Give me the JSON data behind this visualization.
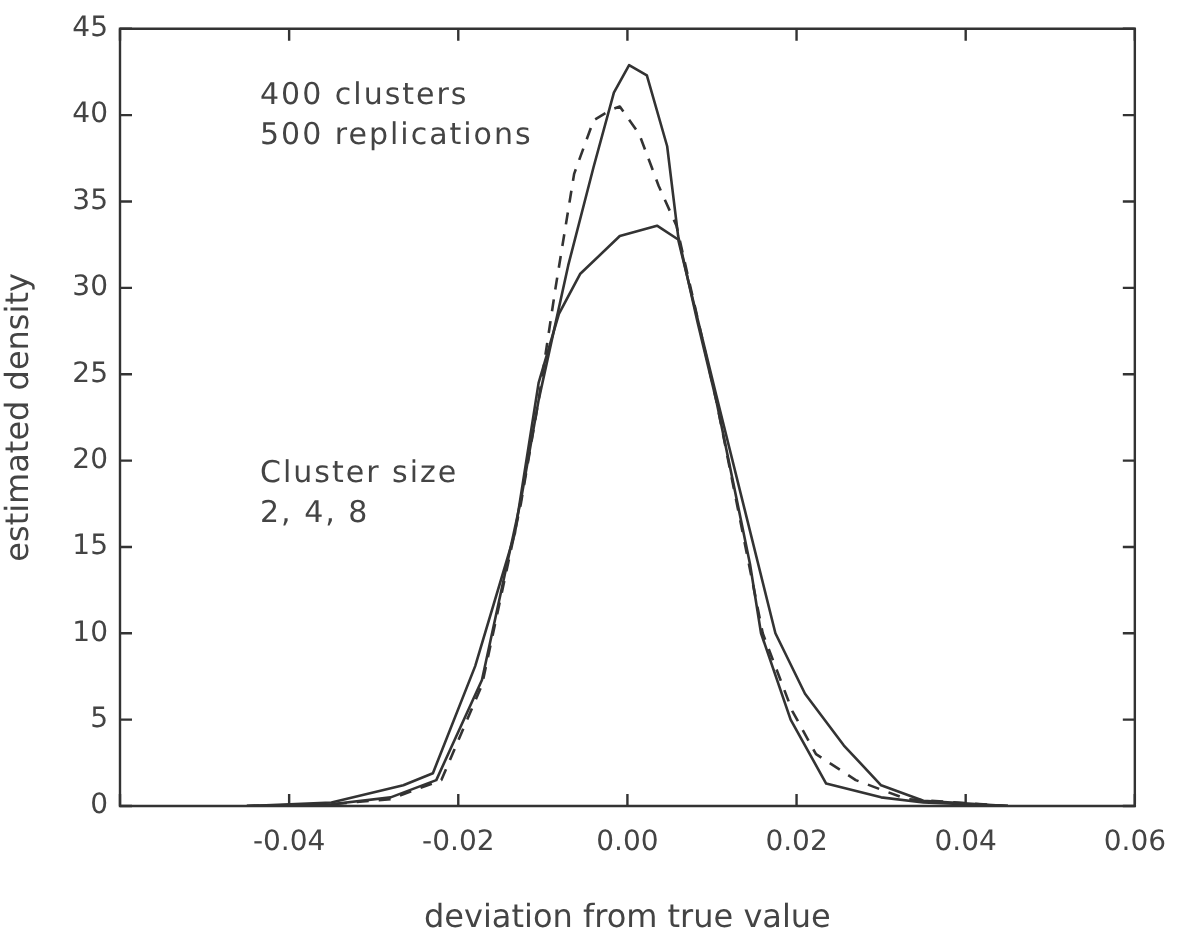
{
  "chart_data": {
    "type": "line",
    "xlabel": "deviation from true value",
    "ylabel": "estimated density",
    "annotations": [
      "400 clusters",
      "500 replications",
      "Cluster size",
      "2, 4, 8"
    ],
    "xlim": [
      -0.06,
      0.06
    ],
    "xticks": [
      {
        "value": -0.06,
        "label": null
      },
      {
        "value": -0.04,
        "label": "-0.04"
      },
      {
        "value": -0.02,
        "label": "-0.02"
      },
      {
        "value": 0,
        "label": "0.00"
      },
      {
        "value": 0.02,
        "label": "0.02"
      },
      {
        "value": 0.04,
        "label": "0.04"
      },
      {
        "value": 0.06,
        "label": "0.06"
      }
    ],
    "ylim": [
      0,
      45
    ],
    "yticks": [
      0,
      5,
      10,
      15,
      20,
      25,
      30,
      35,
      40,
      45
    ],
    "grid": false,
    "legend": false,
    "marker": "none",
    "series": [
      {
        "color": "#333333",
        "line_style": "solid",
        "x": [
          -0.045,
          -0.035,
          -0.028,
          -0.0226,
          -0.0172,
          -0.0126,
          -0.0105,
          -0.007,
          -0.004,
          -0.0016,
          0.0002,
          0.0023,
          0.0047,
          0.006,
          0.0083,
          0.0105,
          0.0145,
          0.0158,
          0.0193,
          0.0235,
          0.03,
          0.035,
          0.045
        ],
        "values": [
          0,
          0.1,
          0.5,
          1.5,
          7.3,
          17.7,
          23.5,
          31.3,
          37,
          41.3,
          42.9,
          42.3,
          38.2,
          33,
          28,
          23.5,
          14,
          10,
          5,
          1.3,
          0.5,
          0.2,
          0
        ]
      },
      {
        "color": "#333333",
        "line_style": "solid",
        "x": [
          -0.045,
          -0.035,
          -0.0265,
          -0.023,
          -0.018,
          -0.0133,
          -0.0105,
          -0.0081,
          -0.0056,
          -0.0009,
          0.0035,
          0.006,
          0.0105,
          0.0175,
          0.021,
          0.0256,
          0.03,
          0.035,
          0.045
        ],
        "values": [
          0,
          0.2,
          1.2,
          1.9,
          8.1,
          15.8,
          24.5,
          28.5,
          30.8,
          33,
          33.6,
          32.8,
          23.8,
          10,
          6.5,
          3.5,
          1.2,
          0.3,
          0
        ]
      },
      {
        "color": "#333333",
        "line_style": "dashed",
        "x": [
          -0.045,
          -0.035,
          -0.028,
          -0.022,
          -0.0172,
          -0.0126,
          -0.0105,
          -0.0085,
          -0.0063,
          -0.004,
          -0.002,
          -0.0009,
          0.0014,
          0.0037,
          0.0058,
          0.0105,
          0.016,
          0.0195,
          0.0223,
          0.027,
          0.033,
          0.045
        ],
        "values": [
          0,
          0.1,
          0.4,
          1.5,
          7,
          17.5,
          23.5,
          30,
          36.6,
          39.7,
          40.3,
          40.5,
          38.9,
          35.9,
          33.6,
          23.5,
          10,
          5.5,
          3,
          1.5,
          0.4,
          0
        ]
      }
    ]
  }
}
